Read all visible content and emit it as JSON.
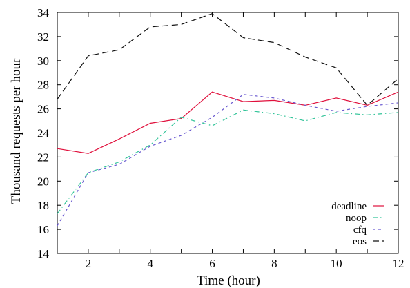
{
  "chart_data": {
    "type": "line",
    "title": "",
    "xlabel": "Time (hour)",
    "ylabel": "Thousand requests per hour",
    "xlim": [
      1,
      12
    ],
    "ylim": [
      14,
      34
    ],
    "xticks": [
      2,
      4,
      6,
      8,
      10,
      12
    ],
    "yticks": [
      14,
      16,
      18,
      20,
      22,
      24,
      26,
      28,
      30,
      32,
      34
    ],
    "grid": false,
    "legend_position": "bottom-right",
    "x": [
      1,
      2,
      3,
      4,
      5,
      6,
      7,
      8,
      9,
      10,
      11,
      12
    ],
    "series": [
      {
        "name": "deadline",
        "color": "#e0103c",
        "dash": "solid",
        "values": [
          22.7,
          22.3,
          23.5,
          24.8,
          25.2,
          27.4,
          26.6,
          26.7,
          26.3,
          26.9,
          26.3,
          27.4
        ]
      },
      {
        "name": "noop",
        "color": "#33c499",
        "dash": "dash-dot",
        "values": [
          17.3,
          20.7,
          21.6,
          23.0,
          25.3,
          24.6,
          25.9,
          25.6,
          25.0,
          25.7,
          25.5,
          25.7
        ]
      },
      {
        "name": "cfq",
        "color": "#6a5ad0",
        "dash": "dashed",
        "values": [
          16.3,
          20.7,
          21.4,
          22.9,
          23.8,
          25.3,
          27.2,
          26.9,
          26.3,
          25.8,
          26.2,
          26.5
        ]
      },
      {
        "name": "eos",
        "color": "#111111",
        "dash": "long-dash",
        "values": [
          26.8,
          30.4,
          30.9,
          32.8,
          33.0,
          33.9,
          31.9,
          31.5,
          30.3,
          29.4,
          26.3,
          28.5
        ]
      }
    ]
  }
}
